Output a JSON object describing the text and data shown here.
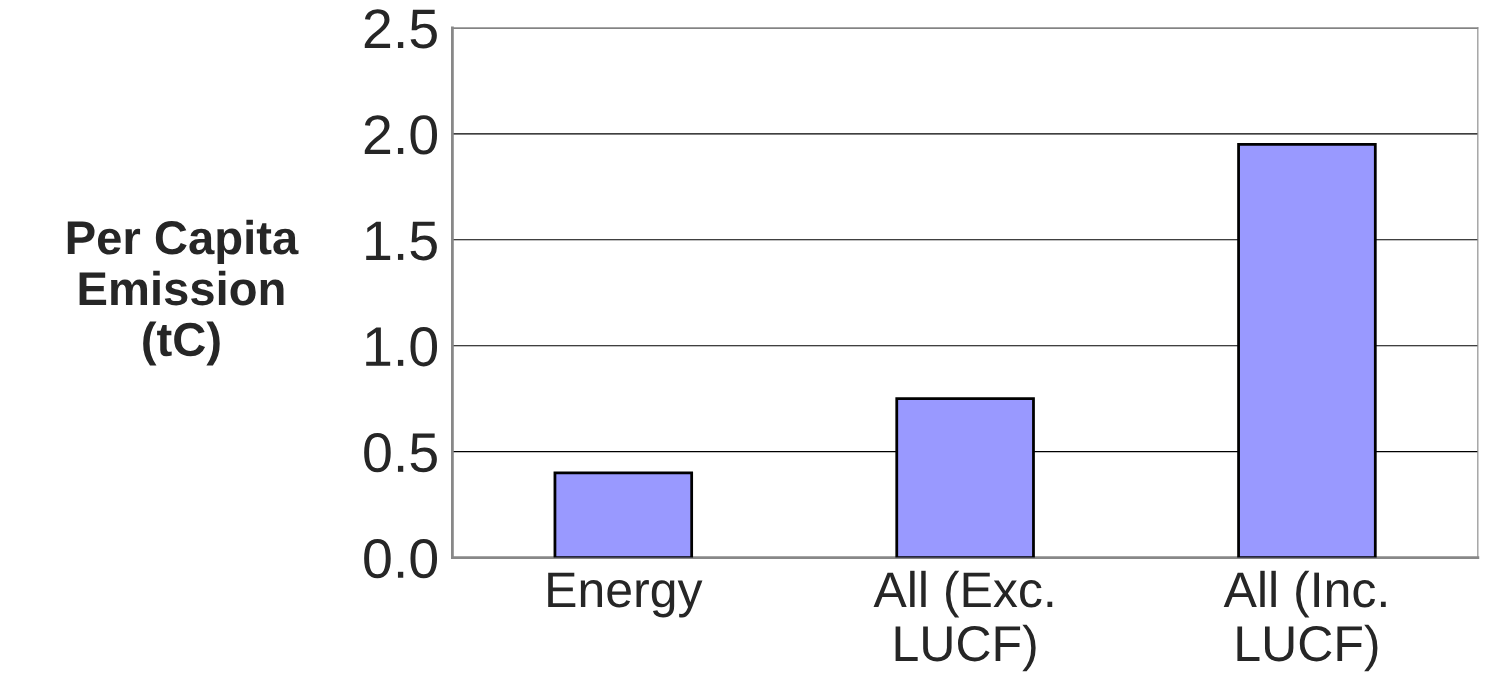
{
  "chart_data": {
    "type": "bar",
    "ylabel": "Per Capita\nEmission\n(tC)",
    "categories": [
      "Energy",
      "All (Exc.\nLUCF)",
      "All (Inc.\nLUCF)"
    ],
    "values": [
      0.4,
      0.75,
      1.95
    ],
    "color": "#9999ff",
    "ylim": [
      0,
      2.5
    ],
    "yticks": [
      {
        "value": 0,
        "label": "0.0"
      },
      {
        "value": 0.5,
        "label": "0.5"
      },
      {
        "value": 1,
        "label": "1.0"
      },
      {
        "value": 1.5,
        "label": "1.5"
      },
      {
        "value": 2,
        "label": "2.0"
      },
      {
        "value": 2.5,
        "label": "2.5"
      }
    ],
    "grid": "y"
  }
}
